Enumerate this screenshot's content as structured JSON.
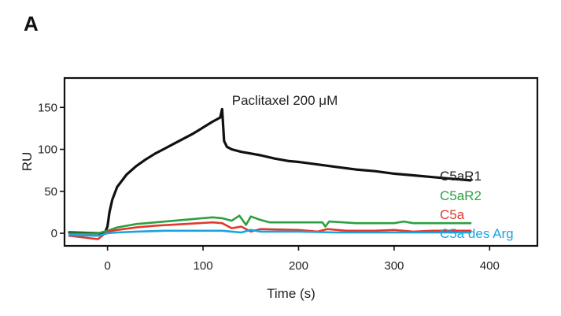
{
  "panel_label": "A",
  "chart_data": {
    "type": "line",
    "title": "",
    "annotation": "Paclitaxel 200 μM",
    "xlabel": "Time (s)",
    "ylabel": "RU",
    "xlim": [
      -45,
      450
    ],
    "ylim": [
      -15,
      185
    ],
    "xticks": [
      0,
      100,
      200,
      300,
      400
    ],
    "yticks": [
      0,
      50,
      100,
      150
    ],
    "grid": false,
    "legend_placement": "right, inline at line ends",
    "series": [
      {
        "name": "C5aR1",
        "color": "#111111",
        "x": [
          -40,
          -10,
          -3,
          0,
          2,
          5,
          10,
          20,
          30,
          40,
          50,
          60,
          70,
          80,
          90,
          100,
          110,
          118,
          120,
          122,
          125,
          130,
          140,
          150,
          160,
          175,
          190,
          200,
          220,
          240,
          260,
          280,
          300,
          320,
          340,
          360,
          380
        ],
        "y": [
          1,
          0,
          0,
          8,
          25,
          40,
          55,
          70,
          80,
          88,
          95,
          101,
          107,
          113,
          119,
          126,
          133,
          138,
          148,
          110,
          103,
          100,
          97,
          95,
          93,
          89,
          86,
          85,
          82,
          79,
          76,
          74,
          71,
          69,
          67,
          65,
          63
        ]
      },
      {
        "name": "C5aR2",
        "color": "#2ca040",
        "x": [
          -40,
          -10,
          0,
          10,
          30,
          50,
          70,
          90,
          110,
          120,
          130,
          138,
          145,
          150,
          160,
          170,
          200,
          225,
          228,
          232,
          260,
          280,
          300,
          310,
          320,
          340,
          380
        ],
        "y": [
          0,
          0,
          3,
          7,
          11,
          13,
          15,
          17,
          19,
          18,
          15,
          21,
          10,
          20,
          16,
          13,
          13,
          13,
          8,
          14,
          12,
          12,
          12,
          14,
          12,
          12,
          12
        ]
      },
      {
        "name": "C5a",
        "color": "#e03a2e",
        "x": [
          -40,
          -10,
          0,
          10,
          30,
          50,
          80,
          110,
          120,
          130,
          140,
          150,
          160,
          200,
          220,
          230,
          250,
          280,
          300,
          320,
          340,
          380
        ],
        "y": [
          -3,
          -7,
          2,
          4,
          7,
          9,
          11,
          13,
          12,
          6,
          8,
          2,
          5,
          4,
          2,
          5,
          3,
          3,
          4,
          2,
          3,
          3
        ]
      },
      {
        "name": "C5a des Arg",
        "color": "#1aa3e0",
        "x": [
          -40,
          -10,
          0,
          10,
          30,
          60,
          90,
          120,
          140,
          150,
          160,
          200,
          240,
          280,
          320,
          380
        ],
        "y": [
          -2,
          -3,
          0,
          1,
          2,
          3,
          3,
          3,
          1,
          4,
          2,
          2,
          1,
          1,
          1,
          1
        ]
      }
    ]
  }
}
